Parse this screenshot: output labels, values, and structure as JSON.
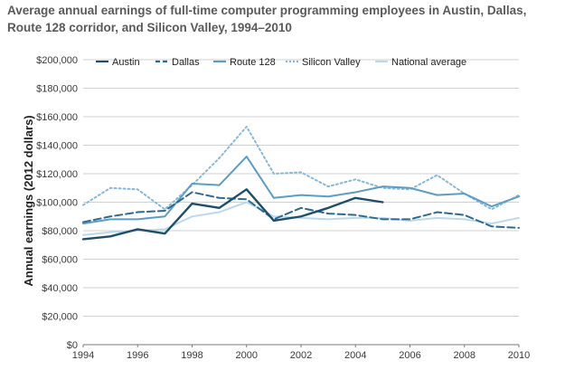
{
  "chart_data": {
    "type": "line",
    "title": "Average annual earnings of full-time computer programming employees in Austin, Dallas, Route 128 corridor, and Silicon Valley, 1994–2010",
    "xlabel": "",
    "ylabel": "Annual earnings (2012 dollars)",
    "x": [
      1994,
      1995,
      1996,
      1997,
      1998,
      1999,
      2000,
      2001,
      2002,
      2003,
      2004,
      2005,
      2006,
      2007,
      2008,
      2009,
      2010
    ],
    "xticks": [
      "1994",
      "1996",
      "1998",
      "2000",
      "2002",
      "2004",
      "2006",
      "2008",
      "2010"
    ],
    "xlim": [
      1994,
      2010
    ],
    "ylim": [
      0,
      200000
    ],
    "yticks": [
      "$0",
      "$20,000",
      "$40,000",
      "$60,000",
      "$80,000",
      "$100,000",
      "$120,000",
      "$140,000",
      "$160,000",
      "$180,000",
      "$200,000"
    ],
    "grid": true,
    "legend_position": "top",
    "series": [
      {
        "name": "Austin",
        "color": "#1d4e6b",
        "dash": "solid",
        "values": [
          74000,
          76000,
          81000,
          78000,
          99000,
          96000,
          109000,
          87000,
          90000,
          96000,
          103000,
          100000,
          null,
          null,
          null,
          null,
          null
        ]
      },
      {
        "name": "Dallas",
        "color": "#2c6a90",
        "dash": "dashed",
        "values": [
          86000,
          90000,
          93000,
          94000,
          107000,
          103000,
          102000,
          88000,
          96000,
          92000,
          91000,
          88000,
          88000,
          93000,
          91000,
          83000,
          82000
        ]
      },
      {
        "name": "Route 128",
        "color": "#5d9cc4",
        "dash": "solid",
        "values": [
          85000,
          88000,
          88000,
          90000,
          113000,
          112000,
          132000,
          103000,
          105000,
          104000,
          107000,
          111000,
          110000,
          105000,
          106000,
          97000,
          104000
        ]
      },
      {
        "name": "Silicon Valley",
        "color": "#86b8d9",
        "dash": "dotted",
        "values": [
          98000,
          110000,
          109000,
          95000,
          112000,
          131000,
          153000,
          120000,
          121000,
          111000,
          116000,
          110000,
          109000,
          119000,
          106000,
          95000,
          105000
        ]
      },
      {
        "name": "National average",
        "color": "#bcd9ec",
        "dash": "solid",
        "values": [
          77000,
          79000,
          80000,
          81000,
          90000,
          93000,
          100000,
          90000,
          89000,
          88000,
          89000,
          89000,
          87000,
          89000,
          88000,
          85000,
          89000
        ]
      }
    ]
  }
}
